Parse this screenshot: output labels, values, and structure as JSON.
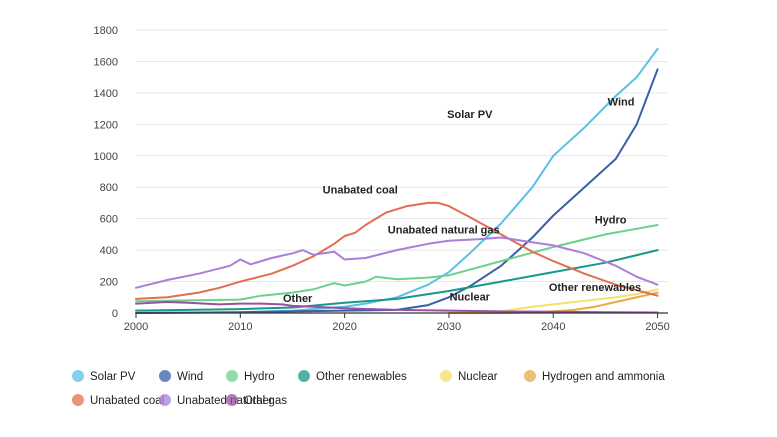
{
  "chart_data": {
    "type": "line",
    "title": "",
    "xlabel": "",
    "ylabel": "",
    "xlim": [
      2000,
      2051
    ],
    "ylim": [
      0,
      1800
    ],
    "x_ticks": [
      2000,
      2010,
      2020,
      2030,
      2040,
      2050
    ],
    "y_ticks": [
      0,
      200,
      400,
      600,
      800,
      1000,
      1200,
      1400,
      1600,
      1800
    ],
    "grid": "horizontal",
    "legend_position": "bottom",
    "series": [
      {
        "name": "Solar PV",
        "color": "#5bc0e6",
        "x": [
          2000,
          2010,
          2015,
          2020,
          2022,
          2025,
          2028,
          2030,
          2032,
          2035,
          2038,
          2040,
          2043,
          2046,
          2048,
          2050
        ],
        "y": [
          0,
          5,
          15,
          40,
          60,
          100,
          180,
          260,
          380,
          570,
          800,
          1000,
          1180,
          1380,
          1500,
          1680
        ]
      },
      {
        "name": "Wind",
        "color": "#3a5fa8",
        "x": [
          2000,
          2010,
          2015,
          2020,
          2025,
          2028,
          2030,
          2032,
          2035,
          2038,
          2040,
          2043,
          2046,
          2048,
          2050
        ],
        "y": [
          0,
          5,
          10,
          15,
          20,
          50,
          100,
          170,
          300,
          480,
          620,
          800,
          980,
          1200,
          1550
        ]
      },
      {
        "name": "Hydro",
        "color": "#6fd08c",
        "x": [
          2000,
          2005,
          2010,
          2012,
          2015,
          2017,
          2019,
          2020,
          2022,
          2023,
          2025,
          2028,
          2030,
          2035,
          2040,
          2045,
          2050
        ],
        "y": [
          75,
          80,
          85,
          110,
          130,
          150,
          190,
          175,
          200,
          230,
          215,
          225,
          240,
          330,
          420,
          500,
          560
        ]
      },
      {
        "name": "Other renewables",
        "color": "#16988a",
        "x": [
          2000,
          2010,
          2015,
          2020,
          2025,
          2030,
          2035,
          2040,
          2045,
          2050
        ],
        "y": [
          15,
          25,
          35,
          65,
          90,
          140,
          200,
          260,
          320,
          400
        ]
      },
      {
        "name": "Nuclear",
        "color": "#f5e06a",
        "x": [
          2034,
          2036,
          2038,
          2040,
          2042,
          2044,
          2046,
          2048,
          2050
        ],
        "y": [
          0,
          20,
          40,
          55,
          70,
          85,
          100,
          120,
          150
        ]
      },
      {
        "name": "Hydrogen and ammonia",
        "color": "#e8a94c",
        "x": [
          2030,
          2035,
          2038,
          2040,
          2042,
          2044,
          2046,
          2048,
          2050
        ],
        "y": [
          0,
          0,
          5,
          10,
          20,
          40,
          70,
          100,
          130
        ]
      },
      {
        "name": "Unabated coal",
        "color": "#e06f52",
        "x": [
          2000,
          2003,
          2006,
          2008,
          2010,
          2013,
          2015,
          2017,
          2019,
          2020,
          2021,
          2022,
          2024,
          2026,
          2028,
          2029,
          2030,
          2032,
          2035,
          2038,
          2040,
          2043,
          2046,
          2050
        ],
        "y": [
          90,
          100,
          130,
          160,
          200,
          250,
          300,
          360,
          440,
          490,
          510,
          560,
          640,
          680,
          700,
          700,
          680,
          610,
          500,
          390,
          330,
          250,
          180,
          110
        ]
      },
      {
        "name": "Unabated natural gas",
        "color": "#a97fd9",
        "x": [
          2000,
          2003,
          2006,
          2009,
          2010,
          2011,
          2013,
          2015,
          2016,
          2017,
          2018,
          2019,
          2020,
          2022,
          2025,
          2028,
          2030,
          2033,
          2035,
          2037,
          2040,
          2043,
          2046,
          2048,
          2050
        ],
        "y": [
          160,
          210,
          250,
          300,
          340,
          310,
          350,
          380,
          400,
          370,
          380,
          390,
          340,
          350,
          400,
          440,
          460,
          470,
          480,
          460,
          430,
          380,
          300,
          230,
          180
        ]
      },
      {
        "name": "Other",
        "color": "#9b4fa3",
        "x": [
          2000,
          2003,
          2005,
          2008,
          2010,
          2012,
          2014,
          2015,
          2017,
          2020,
          2025,
          2030,
          2035,
          2040,
          2045,
          2050
        ],
        "y": [
          60,
          70,
          65,
          55,
          60,
          60,
          55,
          45,
          40,
          30,
          20,
          15,
          10,
          8,
          5,
          3
        ]
      }
    ],
    "annotations": [
      {
        "text": "Solar PV",
        "series": "Solar PV",
        "x": 2032.0,
        "y": 1240
      },
      {
        "text": "Wind",
        "series": "Wind",
        "x": 2046.5,
        "y": 1320
      },
      {
        "text": "Hydro",
        "series": "Hydro",
        "x": 2045.5,
        "y": 570
      },
      {
        "text": "Unabated coal",
        "series": "Unabated coal",
        "x": 2021.5,
        "y": 760
      },
      {
        "text": "Unabated natural gas",
        "series": "Unabated natural gas",
        "x": 2029.5,
        "y": 505
      },
      {
        "text": "Other renewables",
        "series": "Other renewables",
        "x": 2044.0,
        "y": 140
      },
      {
        "text": "Nuclear",
        "series": "Nuclear",
        "x": 2032.0,
        "y": 80
      },
      {
        "text": "Other",
        "series": "Other",
        "x": 2015.5,
        "y": 70
      }
    ]
  }
}
